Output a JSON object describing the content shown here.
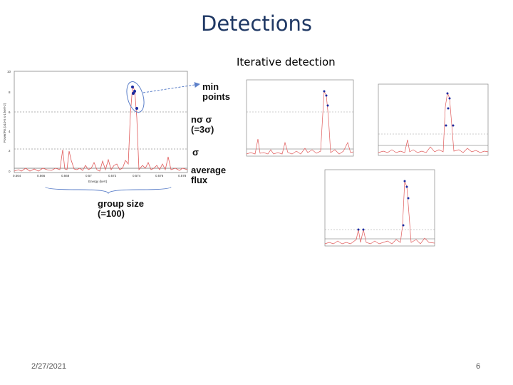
{
  "slide": {
    "title": "Detections",
    "subtitle": "Iterative detection",
    "date": "2/27/2021",
    "page_number": "6"
  },
  "annotations": {
    "min_points": [
      "min",
      "points"
    ],
    "n_sigma": "nσ σ",
    "three_sigma": "(=3σ)",
    "sigma": "σ",
    "average_flux": [
      "average",
      "flux"
    ],
    "group_size": [
      "group size",
      "(=100)"
    ]
  },
  "main_plot": {
    "x_ticks": [
      "0.564",
      "0.566",
      "0.568",
      "0.57",
      "0.572",
      "0.574",
      "0.576",
      "0.578"
    ],
    "y_ticks": [
      "0",
      "2",
      "4",
      "6",
      "8",
      "10"
    ],
    "xlabel": "Energy (keV)",
    "ylabel": "Power/Rs (x10-5 s-1 keV-2)"
  },
  "colors": {
    "title": "#1f3864",
    "curve": "#e05a5a",
    "points": "#1a2aa0",
    "arrow": "#5b7fc9"
  }
}
